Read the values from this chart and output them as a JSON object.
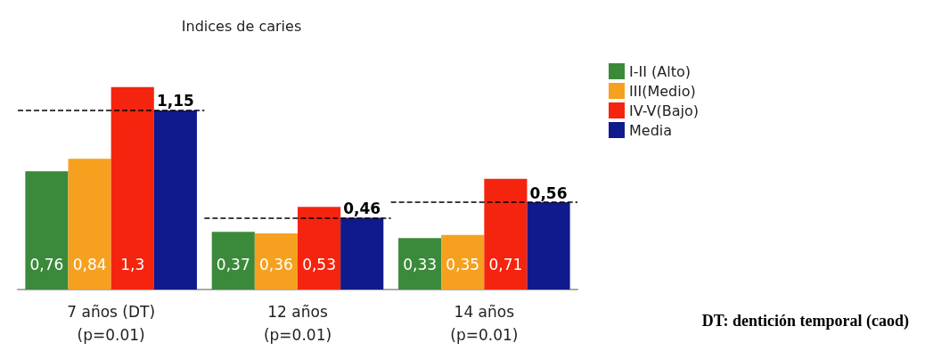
{
  "chart_data": {
    "type": "bar",
    "title": "Indices de caries",
    "categories": [
      "7 años (DT)\n(p=0.01)",
      "12 años\n(p=0.01)",
      "14 años\n(p=0.01)"
    ],
    "series": [
      {
        "name": "I-II (Alto)",
        "color": "#3b8a3b",
        "values": [
          0.76,
          0.37,
          0.33
        ],
        "value_labels": [
          "0,76",
          "0,37",
          "0,33"
        ]
      },
      {
        "name": "III(Medio)",
        "color": "#f5a11f",
        "values": [
          0.84,
          0.36,
          0.35
        ],
        "value_labels": [
          "0,84",
          "0,36",
          "0,35"
        ]
      },
      {
        "name": "IV-V(Bajo)",
        "color": "#f5240f",
        "values": [
          1.3,
          0.53,
          0.71
        ],
        "value_labels": [
          "1,3",
          "0,53",
          "0,71"
        ]
      },
      {
        "name": "Media",
        "color": "#101a8c",
        "values": [
          1.15,
          0.46,
          0.56
        ],
        "value_labels": [
          "1,15",
          "0,46",
          "0,56"
        ]
      }
    ],
    "ref_lines": [
      {
        "axis": "y",
        "value": 1.15,
        "line_style": "dashed",
        "color": "#000000"
      },
      {
        "axis": "y",
        "value": 0.46,
        "line_style": "dashed",
        "color": "#000000"
      },
      {
        "axis": "y",
        "value": 0.56,
        "line_style": "dashed",
        "color": "#000000"
      }
    ],
    "legend": "top right",
    "annotations": [
      "DT: dentición temporal (caod)"
    ]
  }
}
